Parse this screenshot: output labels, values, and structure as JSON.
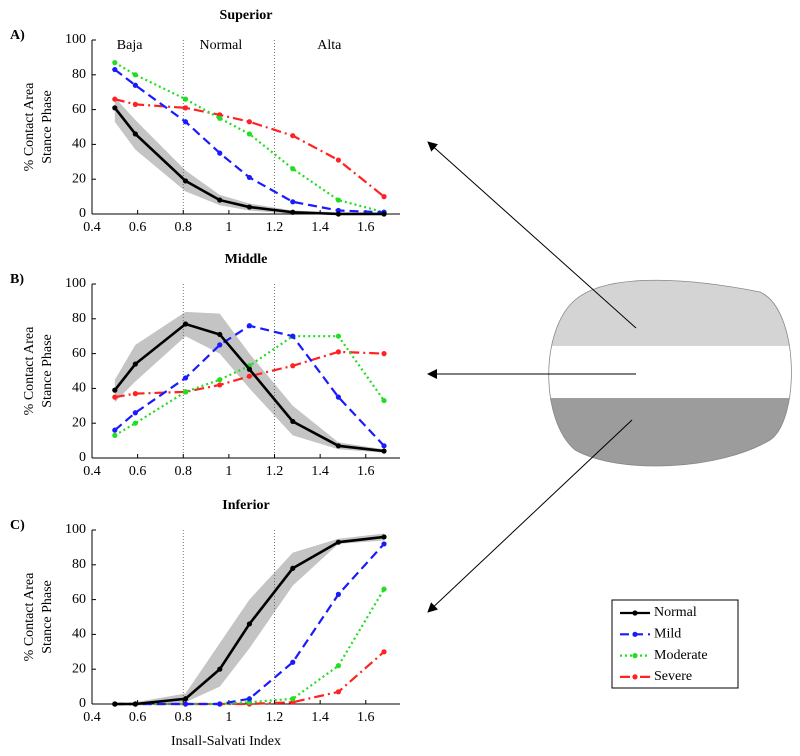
{
  "chart_data": [
    {
      "type": "line",
      "panel_label": "A)",
      "title": "Superior",
      "ylabel": [
        "% Contact Area",
        "Stance Phase"
      ],
      "x": [
        0.5,
        0.59,
        0.81,
        0.96,
        1.09,
        1.28,
        1.48,
        1.68
      ],
      "xlim": [
        0.4,
        1.75
      ],
      "ylim": [
        0,
        100
      ],
      "xticks": [
        0.4,
        0.6,
        0.8,
        1,
        1.2,
        1.4,
        1.6
      ],
      "yticks": [
        0,
        20,
        40,
        60,
        80,
        100
      ],
      "vlines": [
        0.8,
        1.2
      ],
      "region_labels": [
        "Baja",
        "Normal",
        "Alta"
      ],
      "band": {
        "color": "#c4c4c4",
        "upper": [
          67,
          54,
          25,
          11,
          6,
          2,
          1,
          1
        ],
        "lower": [
          53,
          37,
          13,
          5,
          2,
          0,
          0,
          0
        ]
      },
      "series": [
        {
          "color": "#000000",
          "linestyle": "solid",
          "values": [
            61,
            46,
            19,
            8,
            4,
            1,
            0,
            0
          ]
        },
        {
          "color": "#1a1aff",
          "linestyle": "dashed",
          "values": [
            83,
            74,
            53,
            35,
            21,
            7,
            2,
            1
          ]
        },
        {
          "color": "#22dd22",
          "linestyle": "dotted",
          "values": [
            87,
            80,
            66,
            55,
            46,
            26,
            8,
            1
          ]
        },
        {
          "color": "#ff2222",
          "linestyle": "dashdot",
          "values": [
            66,
            63,
            61,
            57,
            53,
            45,
            31,
            10
          ]
        }
      ]
    },
    {
      "type": "line",
      "panel_label": "B)",
      "title": "Middle",
      "ylabel": [
        "% Contact Area",
        "Stance Phase"
      ],
      "x": [
        0.5,
        0.59,
        0.81,
        0.96,
        1.09,
        1.28,
        1.48,
        1.68
      ],
      "xlim": [
        0.4,
        1.75
      ],
      "ylim": [
        0,
        100
      ],
      "xticks": [
        0.4,
        0.6,
        0.8,
        1,
        1.2,
        1.4,
        1.6
      ],
      "yticks": [
        0,
        20,
        40,
        60,
        80,
        100
      ],
      "vlines": [
        0.8,
        1.2
      ],
      "band": {
        "color": "#c4c4c4",
        "upper": [
          45,
          65,
          84,
          83,
          60,
          30,
          9,
          5
        ],
        "lower": [
          32,
          44,
          70,
          60,
          40,
          13,
          5,
          3
        ]
      },
      "series": [
        {
          "color": "#000000",
          "linestyle": "solid",
          "values": [
            39,
            54,
            77,
            71,
            51,
            21,
            7,
            4
          ]
        },
        {
          "color": "#1a1aff",
          "linestyle": "dashed",
          "values": [
            16,
            26,
            46,
            65,
            76,
            70,
            35,
            7
          ]
        },
        {
          "color": "#22dd22",
          "linestyle": "dotted",
          "values": [
            13,
            20,
            38,
            45,
            53,
            70,
            70,
            33
          ]
        },
        {
          "color": "#ff2222",
          "linestyle": "dashdot",
          "values": [
            35,
            37,
            38,
            42,
            47,
            53,
            61,
            60
          ]
        }
      ]
    },
    {
      "type": "line",
      "panel_label": "C)",
      "title": "Inferior",
      "ylabel": [
        "% Contact Area",
        "Stance Phase"
      ],
      "xlabel": "Insall-Salvati Index",
      "x": [
        0.5,
        0.59,
        0.81,
        0.96,
        1.09,
        1.28,
        1.48,
        1.68
      ],
      "xlim": [
        0.4,
        1.75
      ],
      "ylim": [
        0,
        100
      ],
      "xticks": [
        0.4,
        0.6,
        0.8,
        1,
        1.2,
        1.4,
        1.6
      ],
      "yticks": [
        0,
        20,
        40,
        60,
        80,
        100
      ],
      "vlines": [
        0.8,
        1.2
      ],
      "band": {
        "color": "#c4c4c4",
        "upper": [
          0,
          1,
          6,
          35,
          60,
          87,
          95,
          98
        ],
        "lower": [
          0,
          0,
          1,
          10,
          32,
          68,
          92,
          94
        ]
      },
      "series": [
        {
          "name": "Normal",
          "color": "#000000",
          "linestyle": "solid",
          "values": [
            0,
            0,
            3,
            20,
            46,
            78,
            93,
            96
          ]
        },
        {
          "name": "Mild",
          "color": "#1a1aff",
          "linestyle": "dashed",
          "values": [
            0,
            0,
            0,
            0,
            3,
            24,
            63,
            92
          ]
        },
        {
          "name": "Moderate",
          "color": "#22dd22",
          "linestyle": "dotted",
          "values": [
            0,
            0,
            0,
            0,
            1,
            3,
            22,
            66
          ]
        },
        {
          "name": "Severe",
          "color": "#ff2222",
          "linestyle": "dashdot",
          "values": [
            0,
            0,
            0,
            0,
            0,
            1,
            7,
            30
          ]
        }
      ]
    }
  ]
}
